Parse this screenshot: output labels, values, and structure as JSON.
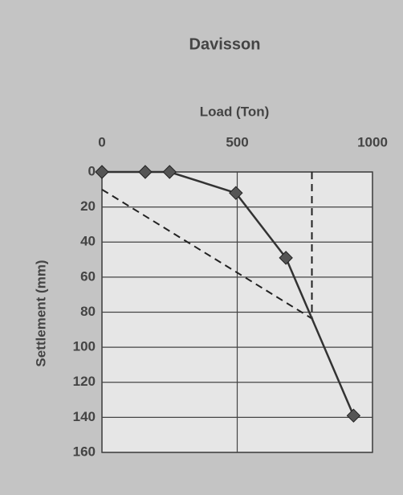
{
  "chart_data": {
    "type": "line",
    "title": "Davisson",
    "x_label": "Load (Ton)",
    "y_label": "Settlement (mm)",
    "x": [
      0,
      160,
      250,
      495,
      680,
      930
    ],
    "values": [
      0,
      0,
      0,
      12,
      49,
      139
    ],
    "color": "#333333",
    "marker": "diamond",
    "marker_color": "#555555",
    "xlim": [
      0,
      1000
    ],
    "xticks": [
      0,
      500,
      1000
    ],
    "ylim": [
      0,
      160
    ],
    "yticks": [
      0,
      20,
      40,
      60,
      80,
      100,
      120,
      140,
      160
    ],
    "y_inverted": true,
    "x_axis_position": "top",
    "grid": true,
    "offset_line": {
      "x": [
        0,
        780
      ],
      "y": [
        10,
        84
      ]
    },
    "failure_line": {
      "x": 776,
      "y": [
        0,
        84
      ]
    }
  }
}
